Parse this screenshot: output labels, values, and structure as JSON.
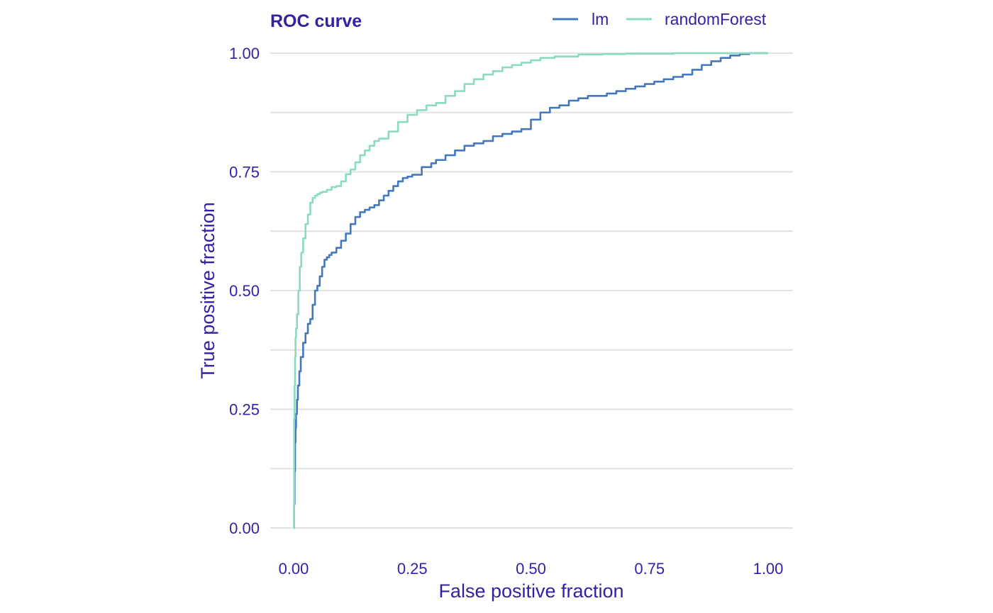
{
  "chart_data": {
    "type": "line",
    "title": "ROC curve",
    "xlabel": "False positive fraction",
    "ylabel": "True positive fraction",
    "xlim": [
      0,
      1
    ],
    "ylim": [
      0,
      1
    ],
    "x_ticks": [
      0,
      0.25,
      0.5,
      0.75,
      1.0
    ],
    "x_tick_labels": [
      "0.00",
      "0.25",
      "0.50",
      "0.75",
      "1.00"
    ],
    "y_ticks": [
      0,
      0.25,
      0.5,
      0.75,
      1.0
    ],
    "y_tick_labels": [
      "0.00",
      "0.25",
      "0.50",
      "0.75",
      "1.00"
    ],
    "grid": true,
    "legend_position": "top-right",
    "series": [
      {
        "name": "lm",
        "color": "#4378bf",
        "x": [
          0,
          0.001,
          0.002,
          0.003,
          0.004,
          0.005,
          0.007,
          0.009,
          0.012,
          0.015,
          0.02,
          0.025,
          0.03,
          0.035,
          0.04,
          0.045,
          0.05,
          0.055,
          0.06,
          0.065,
          0.07,
          0.075,
          0.08,
          0.09,
          0.1,
          0.11,
          0.12,
          0.13,
          0.14,
          0.15,
          0.16,
          0.17,
          0.18,
          0.19,
          0.2,
          0.21,
          0.22,
          0.23,
          0.24,
          0.25,
          0.27,
          0.29,
          0.3,
          0.32,
          0.34,
          0.36,
          0.38,
          0.4,
          0.42,
          0.44,
          0.46,
          0.48,
          0.5,
          0.52,
          0.54,
          0.56,
          0.58,
          0.6,
          0.62,
          0.64,
          0.66,
          0.68,
          0.7,
          0.72,
          0.74,
          0.76,
          0.78,
          0.8,
          0.82,
          0.84,
          0.86,
          0.88,
          0.9,
          0.92,
          0.94,
          0.96,
          0.98,
          1.0
        ],
        "y": [
          0,
          0.05,
          0.12,
          0.18,
          0.21,
          0.24,
          0.27,
          0.3,
          0.33,
          0.36,
          0.39,
          0.41,
          0.43,
          0.44,
          0.47,
          0.5,
          0.51,
          0.53,
          0.55,
          0.565,
          0.57,
          0.575,
          0.58,
          0.59,
          0.605,
          0.62,
          0.64,
          0.655,
          0.665,
          0.67,
          0.675,
          0.68,
          0.69,
          0.7,
          0.71,
          0.72,
          0.73,
          0.737,
          0.74,
          0.744,
          0.76,
          0.768,
          0.775,
          0.785,
          0.795,
          0.805,
          0.81,
          0.815,
          0.825,
          0.83,
          0.835,
          0.84,
          0.86,
          0.875,
          0.885,
          0.89,
          0.9,
          0.905,
          0.91,
          0.91,
          0.915,
          0.92,
          0.925,
          0.93,
          0.935,
          0.94,
          0.945,
          0.95,
          0.955,
          0.965,
          0.975,
          0.983,
          0.99,
          0.995,
          0.998,
          1.0,
          1.0,
          1.0
        ]
      },
      {
        "name": "randomForest",
        "color": "#8bdcbe",
        "x": [
          0,
          0.001,
          0.002,
          0.003,
          0.004,
          0.005,
          0.007,
          0.01,
          0.013,
          0.016,
          0.02,
          0.025,
          0.03,
          0.035,
          0.04,
          0.045,
          0.05,
          0.055,
          0.06,
          0.07,
          0.08,
          0.09,
          0.1,
          0.11,
          0.12,
          0.13,
          0.14,
          0.15,
          0.16,
          0.17,
          0.18,
          0.2,
          0.22,
          0.24,
          0.26,
          0.28,
          0.3,
          0.32,
          0.34,
          0.36,
          0.38,
          0.4,
          0.42,
          0.44,
          0.46,
          0.48,
          0.5,
          0.52,
          0.55,
          0.6,
          0.65,
          0.7,
          0.8,
          0.9,
          1.0
        ],
        "y": [
          0,
          0.23,
          0.3,
          0.36,
          0.4,
          0.42,
          0.45,
          0.5,
          0.55,
          0.58,
          0.61,
          0.64,
          0.66,
          0.685,
          0.695,
          0.7,
          0.703,
          0.706,
          0.708,
          0.712,
          0.718,
          0.72,
          0.73,
          0.745,
          0.755,
          0.77,
          0.785,
          0.795,
          0.805,
          0.815,
          0.82,
          0.835,
          0.855,
          0.87,
          0.88,
          0.89,
          0.895,
          0.91,
          0.92,
          0.935,
          0.945,
          0.955,
          0.962,
          0.97,
          0.975,
          0.98,
          0.985,
          0.99,
          0.993,
          0.997,
          0.998,
          0.999,
          1.0,
          1.0,
          1.0
        ]
      }
    ]
  },
  "colors": {
    "text": "#371ea3",
    "grid": "#e2e2e2"
  }
}
